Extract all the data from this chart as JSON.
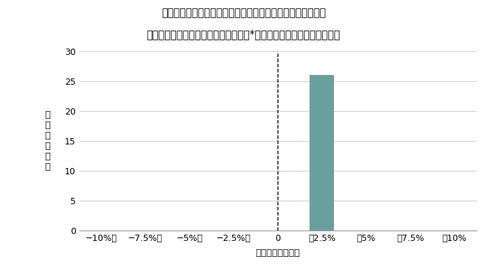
{
  "title_line1": "当社の取り扱った長期仕組頲金（長短金利差連動型頲金）の",
  "title_line2": "リスク・リターンの実績（新興国通貨*参照を除く、償還済、７銘柄）",
  "xlabel": "トータルリターン",
  "ylabel_chars": [
    "本",
    "数",
    "（",
    "回",
    "数",
    "）"
  ],
  "categories": [
    "−10%～",
    "−7.5%～",
    "−5%～",
    "−2.5%～",
    "0",
    "～2.5%",
    "～5%",
    "～7.5%",
    "～10%"
  ],
  "values": [
    0,
    0,
    0,
    0,
    0,
    26,
    0,
    0,
    0
  ],
  "bar_color": "#6a9fa0",
  "ylim": [
    0,
    30
  ],
  "yticks": [
    0,
    5,
    10,
    15,
    20,
    25,
    30
  ],
  "dashed_line_index": 4,
  "background_color": "#ffffff",
  "grid_color": "#cccccc",
  "title_fontsize": 10.5,
  "axis_label_fontsize": 9.5,
  "tick_fontsize": 9
}
